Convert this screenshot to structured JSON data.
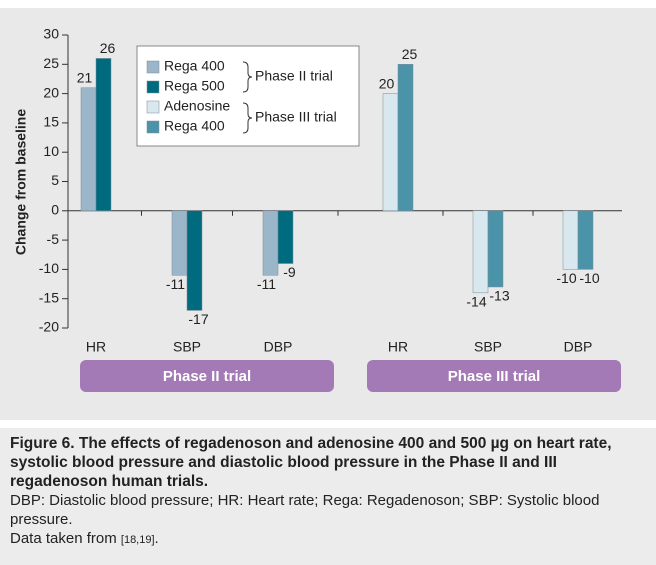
{
  "chart_data": {
    "type": "bar",
    "ylabel": "Change from baseline",
    "categories": [
      "HR",
      "SBP",
      "DBP",
      "HR",
      "SBP",
      "DBP"
    ],
    "series": [
      {
        "name": "Rega 400",
        "color": "#9bb5c9",
        "values": [
          21,
          -11,
          -11,
          null,
          null,
          null
        ]
      },
      {
        "name": "Rega 500",
        "color": "#006b7e",
        "values": [
          26,
          -17,
          -9,
          null,
          null,
          null
        ]
      },
      {
        "name": "Adenosine",
        "color": "#d9e8ee",
        "values": [
          null,
          null,
          null,
          20,
          -14,
          -10
        ]
      },
      {
        "name": "Rega 400",
        "color": "#4a93a9",
        "values": [
          null,
          null,
          null,
          25,
          -13,
          -10
        ]
      }
    ],
    "legend_group_labels": [
      "Phase II trial",
      "Phase III trial"
    ],
    "group_labels": [
      "Phase II trial",
      "Phase III trial"
    ],
    "group_color": "#a47ab6",
    "ylim": [
      -20,
      30
    ],
    "yticks": [
      -20,
      -15,
      -10,
      -5,
      0,
      5,
      10,
      15,
      20,
      25,
      30
    ]
  },
  "caption": {
    "title": "Figure 6. The effects of regadenoson and adenosine 400 and 500 µg on heart rate, systolic blood pressure and diastolic blood pressure in the Phase II and III regadenoson human trials.",
    "abbreviations": "DBP: Diastolic blood pressure; HR: Heart rate; Rega: Regadenoson; SBP: Systolic blood pressure.",
    "source": [
      "Data taken from",
      "[18,19]",
      "."
    ]
  }
}
